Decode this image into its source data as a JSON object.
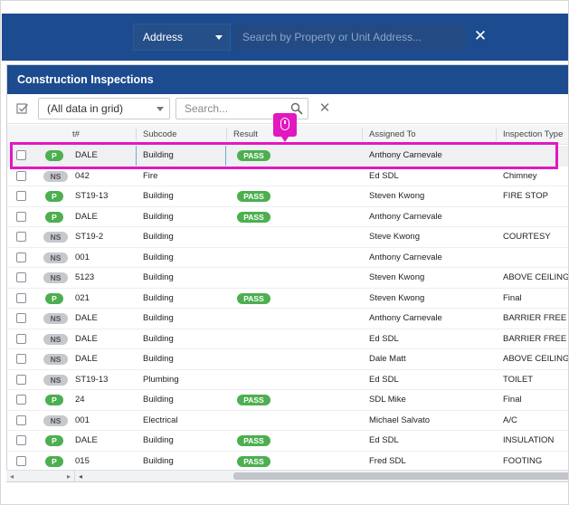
{
  "topbar": {
    "address_select": "Address",
    "search_placeholder": "Search by Property or Unit Address..."
  },
  "panel": {
    "title": "Construction Inspections",
    "grid_select": "(All data in grid)",
    "search_placeholder": "Search..."
  },
  "columns": {
    "permit": "t#",
    "subcode": "Subcode",
    "result": "Result",
    "assigned": "Assigned To",
    "type": "Inspection Type"
  },
  "rows": [
    {
      "status": "P",
      "permit": "DALE",
      "subcode": "Building",
      "result": "PASS",
      "assigned": "Anthony Carnevale",
      "type": ""
    },
    {
      "status": "NS",
      "permit": "042",
      "subcode": "Fire",
      "result": "",
      "assigned": "Ed SDL",
      "type": "Chimney"
    },
    {
      "status": "P",
      "permit": "ST19-13",
      "subcode": "Building",
      "result": "PASS",
      "assigned": "Steven Kwong",
      "type": "FIRE STOP"
    },
    {
      "status": "P",
      "permit": "DALE",
      "subcode": "Building",
      "result": "PASS",
      "assigned": "Anthony Carnevale",
      "type": ""
    },
    {
      "status": "NS",
      "permit": "ST19-2",
      "subcode": "Building",
      "result": "",
      "assigned": "Steve Kwong",
      "type": "COURTESY"
    },
    {
      "status": "NS",
      "permit": "001",
      "subcode": "Building",
      "result": "",
      "assigned": "Anthony Carnevale",
      "type": ""
    },
    {
      "status": "NS",
      "permit": "5123",
      "subcode": "Building",
      "result": "",
      "assigned": "Steven Kwong",
      "type": "ABOVE CEILING"
    },
    {
      "status": "P",
      "permit": "021",
      "subcode": "Building",
      "result": "PASS",
      "assigned": "Steven Kwong",
      "type": "Final"
    },
    {
      "status": "NS",
      "permit": "DALE",
      "subcode": "Building",
      "result": "",
      "assigned": "Anthony Carnevale",
      "type": "BARRIER FREE"
    },
    {
      "status": "NS",
      "permit": "DALE",
      "subcode": "Building",
      "result": "",
      "assigned": "Ed SDL",
      "type": "BARRIER FREE"
    },
    {
      "status": "NS",
      "permit": "DALE",
      "subcode": "Building",
      "result": "",
      "assigned": "Dale Matt",
      "type": "ABOVE CEILING"
    },
    {
      "status": "NS",
      "permit": "ST19-13",
      "subcode": "Plumbing",
      "result": "",
      "assigned": "Ed SDL",
      "type": "TOILET"
    },
    {
      "status": "P",
      "permit": "24",
      "subcode": "Building",
      "result": "PASS",
      "assigned": "SDL Mike",
      "type": "Final"
    },
    {
      "status": "NS",
      "permit": "001",
      "subcode": "Electrical",
      "result": "",
      "assigned": "Michael Salvato",
      "type": "A/C"
    },
    {
      "status": "P",
      "permit": "DALE",
      "subcode": "Building",
      "result": "PASS",
      "assigned": "Ed SDL",
      "type": "INSULATION"
    },
    {
      "status": "P",
      "permit": "015",
      "subcode": "Building",
      "result": "PASS",
      "assigned": "Fred SDL",
      "type": "FOOTING"
    }
  ],
  "colors": {
    "header_blue": "#1c4b8f",
    "pass_green": "#4caf50",
    "highlight_magenta": "#e317c0"
  }
}
